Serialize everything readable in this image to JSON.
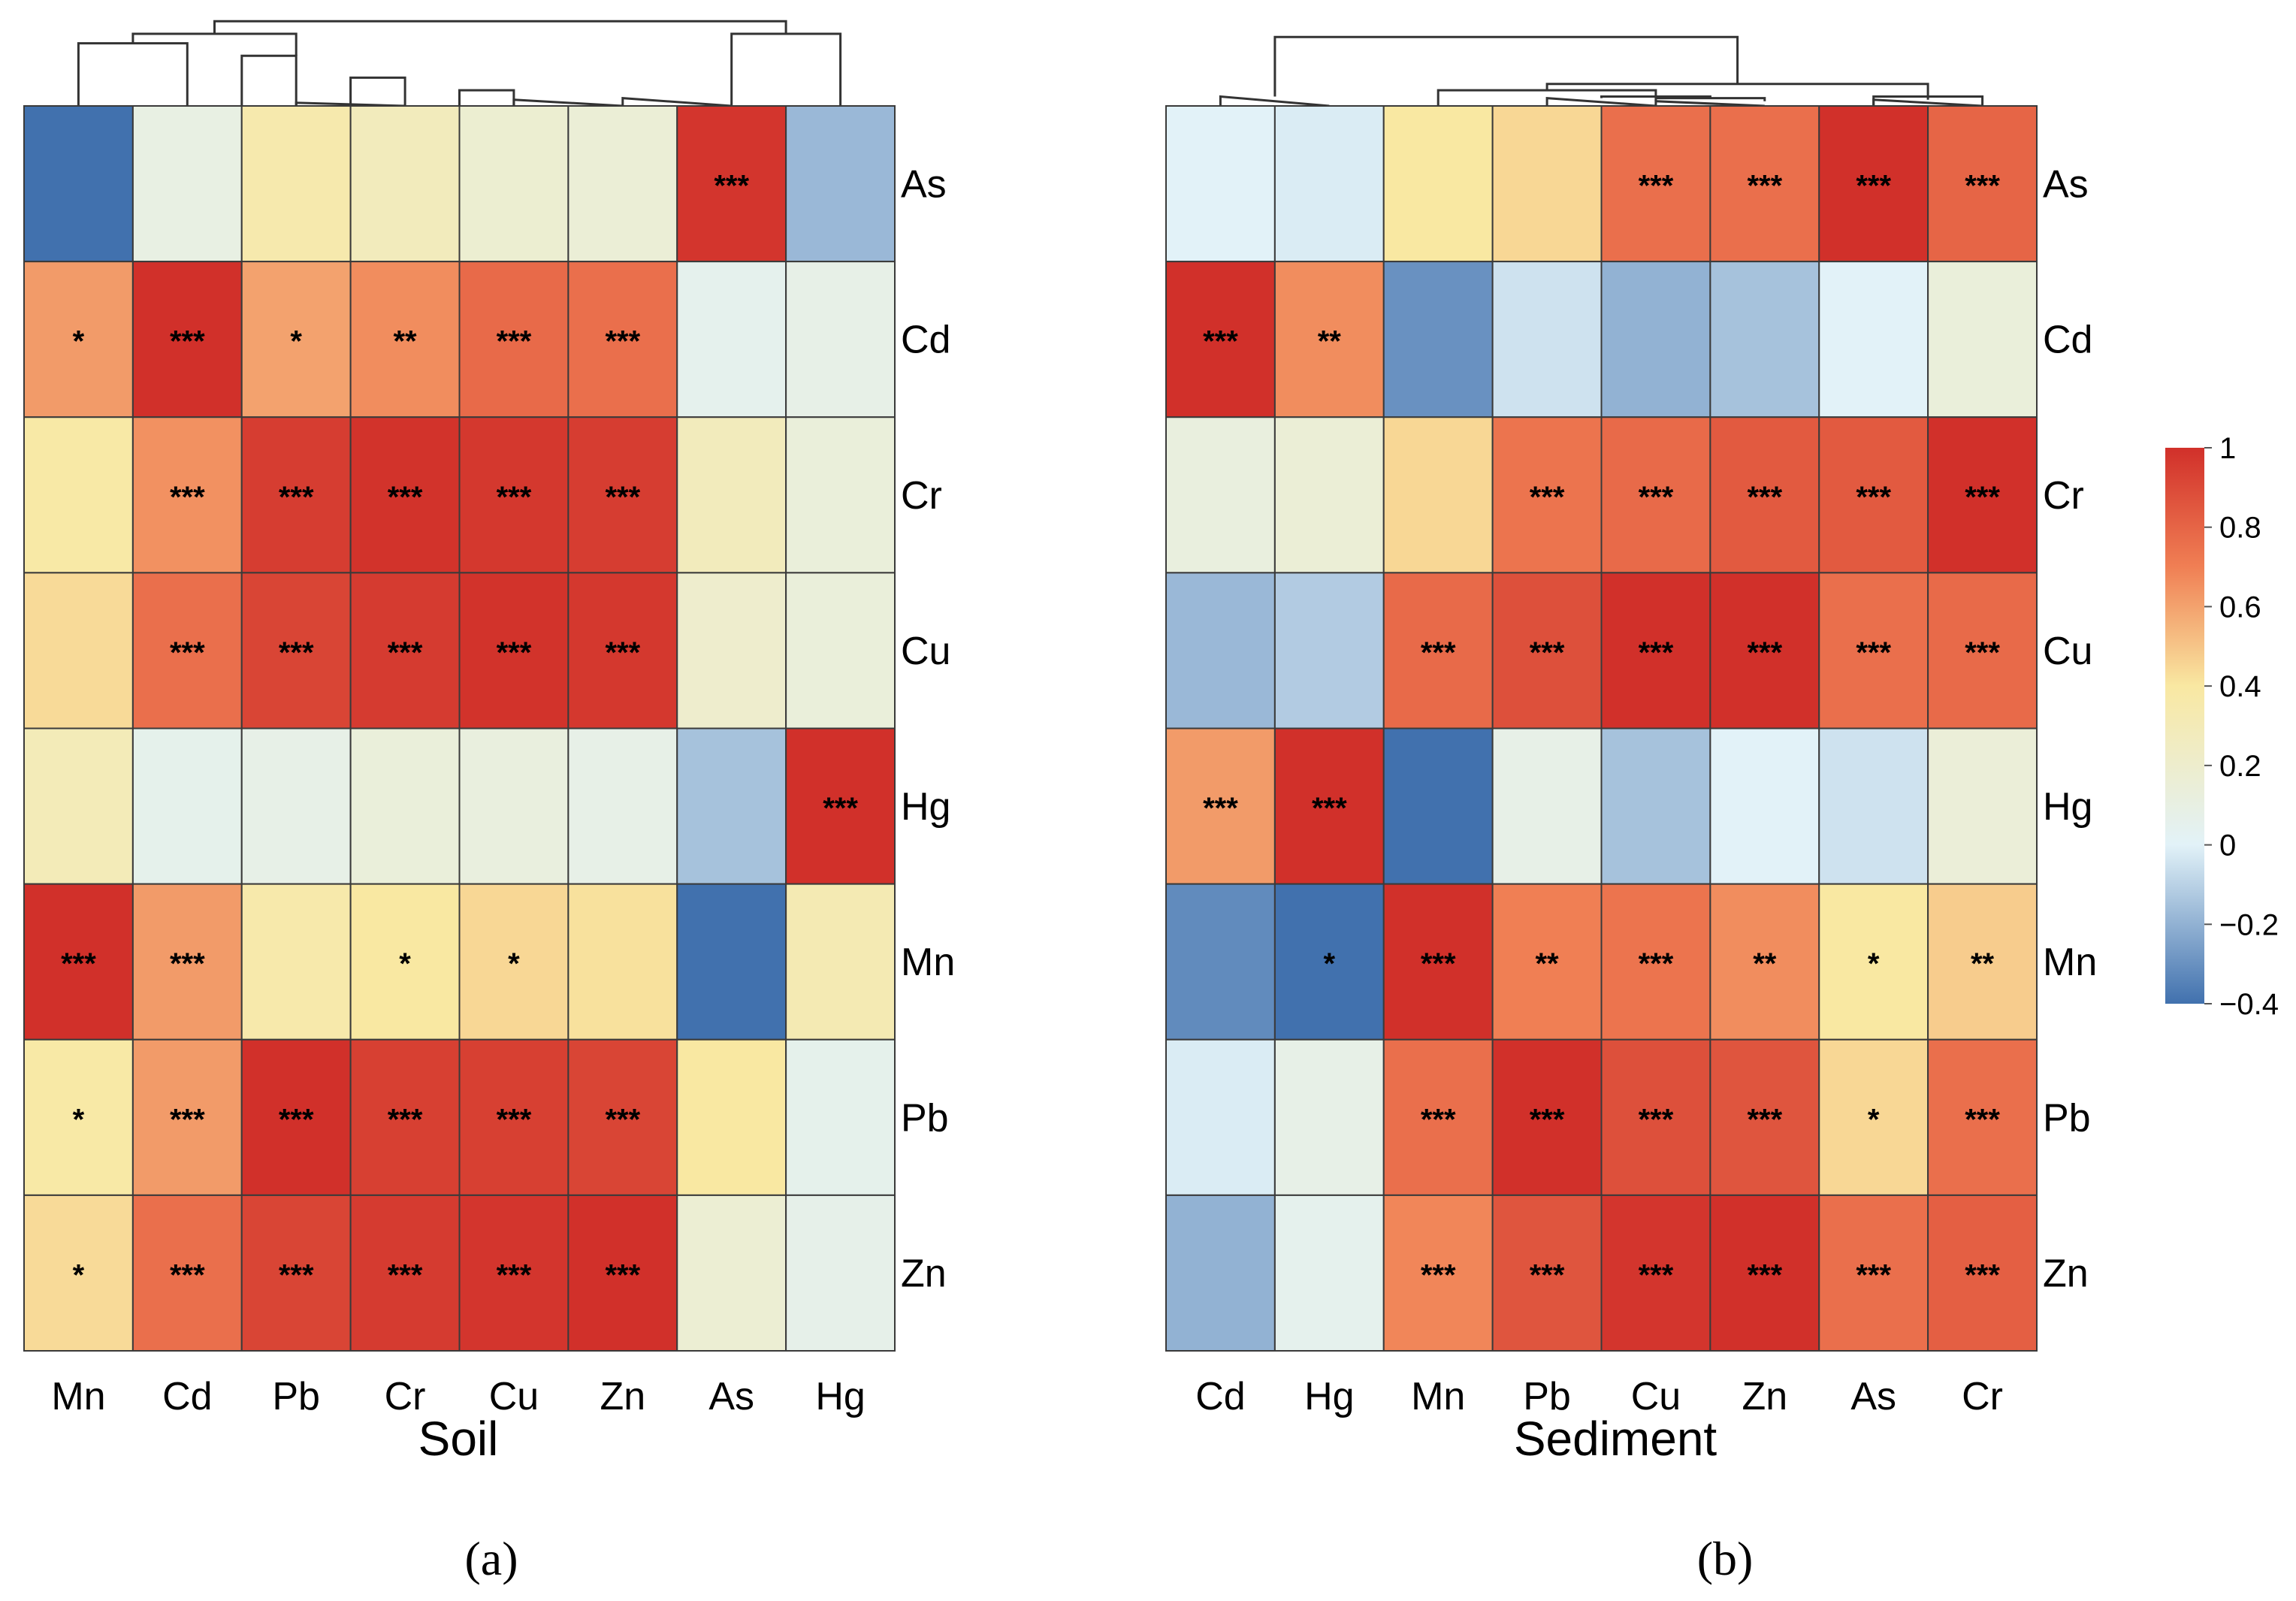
{
  "chart_data": [
    {
      "type": "heatmap",
      "xlabel": "Soil",
      "panel_label": "(a)",
      "columns": [
        "Mn",
        "Cd",
        "Pb",
        "Cr",
        "Cu",
        "Zn",
        "As",
        "Hg"
      ],
      "rows": [
        "As",
        "Cd",
        "Cr",
        "Cu",
        "Hg",
        "Mn",
        "Pb",
        "Zn"
      ],
      "values": [
        [
          -0.4,
          0.1,
          0.35,
          0.28,
          0.18,
          0.16,
          0.98,
          -0.18
        ],
        [
          0.62,
          1.0,
          0.6,
          0.66,
          0.78,
          0.76,
          0.05,
          0.08
        ],
        [
          0.38,
          0.65,
          0.95,
          0.99,
          0.97,
          0.95,
          0.28,
          0.14
        ],
        [
          0.44,
          0.76,
          0.92,
          0.96,
          0.99,
          0.97,
          0.2,
          0.14
        ],
        [
          0.3,
          0.06,
          0.08,
          0.14,
          0.12,
          0.08,
          -0.15,
          1.0
        ],
        [
          1.0,
          0.62,
          0.36,
          0.4,
          0.45,
          0.42,
          -0.4,
          0.32
        ],
        [
          0.38,
          0.62,
          1.0,
          0.94,
          0.94,
          0.92,
          0.4,
          0.06
        ],
        [
          0.44,
          0.76,
          0.92,
          0.96,
          0.98,
          1.0,
          0.17,
          0.07
        ]
      ],
      "significance": [
        [
          "",
          "",
          "",
          "",
          "",
          "",
          "***",
          ""
        ],
        [
          "*",
          "***",
          "*",
          "**",
          "***",
          "***",
          "",
          ""
        ],
        [
          "",
          "***",
          "***",
          "***",
          "***",
          "***",
          "",
          ""
        ],
        [
          "",
          "***",
          "***",
          "***",
          "***",
          "***",
          "",
          ""
        ],
        [
          "",
          "",
          "",
          "",
          "",
          "",
          "",
          "***"
        ],
        [
          "***",
          "***",
          "",
          "*",
          "*",
          "",
          "",
          ""
        ],
        [
          "*",
          "***",
          "***",
          "***",
          "***",
          "***",
          "",
          ""
        ],
        [
          "*",
          "***",
          "***",
          "***",
          "***",
          "***",
          "",
          ""
        ]
      ]
    },
    {
      "type": "heatmap",
      "xlabel": "Sediment",
      "panel_label": "(b)",
      "columns": [
        "Cd",
        "Hg",
        "Mn",
        "Pb",
        "Cu",
        "Zn",
        "As",
        "Cr"
      ],
      "rows": [
        "As",
        "Cd",
        "Cr",
        "Cu",
        "Hg",
        "Mn",
        "Pb",
        "Zn"
      ],
      "values": [
        [
          0.0,
          -0.02,
          0.4,
          0.45,
          0.76,
          0.76,
          1.0,
          0.8
        ],
        [
          1.0,
          0.66,
          -0.3,
          -0.05,
          -0.2,
          -0.15,
          0.0,
          0.14
        ],
        [
          0.12,
          0.16,
          0.45,
          0.74,
          0.78,
          0.84,
          0.84,
          1.0
        ],
        [
          -0.18,
          -0.12,
          0.78,
          0.88,
          1.0,
          1.0,
          0.76,
          0.78
        ],
        [
          0.62,
          1.0,
          -0.4,
          0.08,
          -0.15,
          0.0,
          -0.05,
          0.15
        ],
        [
          -0.32,
          -0.4,
          1.0,
          0.7,
          0.74,
          0.66,
          0.4,
          0.48
        ],
        [
          -0.02,
          0.08,
          0.76,
          1.0,
          0.88,
          0.86,
          0.45,
          0.76
        ],
        [
          -0.2,
          0.05,
          0.68,
          0.86,
          0.98,
          1.0,
          0.76,
          0.82
        ]
      ],
      "significance": [
        [
          "",
          "",
          "",
          "",
          "***",
          "***",
          "***",
          "***"
        ],
        [
          "***",
          "**",
          "",
          "",
          "",
          "",
          "",
          ""
        ],
        [
          "",
          "",
          "",
          "***",
          "***",
          "***",
          "***",
          "***"
        ],
        [
          "",
          "",
          "***",
          "***",
          "***",
          "***",
          "***",
          "***"
        ],
        [
          "***",
          "***",
          "",
          "",
          "",
          "",
          "",
          ""
        ],
        [
          "",
          "*",
          "***",
          "**",
          "***",
          "**",
          "*",
          "**"
        ],
        [
          "",
          "",
          "***",
          "***",
          "***",
          "***",
          "*",
          "***"
        ],
        [
          "",
          "",
          "***",
          "***",
          "***",
          "***",
          "***",
          "***"
        ]
      ]
    }
  ],
  "colorbar": {
    "range": [
      -0.4,
      1
    ],
    "ticks": [
      1,
      0.8,
      0.6,
      0.4,
      0.2,
      0,
      -0.2,
      -0.4
    ],
    "tick_labels": [
      "1",
      "0.8",
      "0.6",
      "0.4",
      "0.2",
      "0",
      "−0.2",
      "−0.4"
    ],
    "stops": [
      {
        "value": -0.4,
        "color": "#4171ae"
      },
      {
        "value": 0.0,
        "color": "#e2f2f8"
      },
      {
        "value": 0.4,
        "color": "#f9e8a2"
      },
      {
        "value": 0.7,
        "color": "#f07f54"
      },
      {
        "value": 1.0,
        "color": "#d1302a"
      }
    ]
  }
}
